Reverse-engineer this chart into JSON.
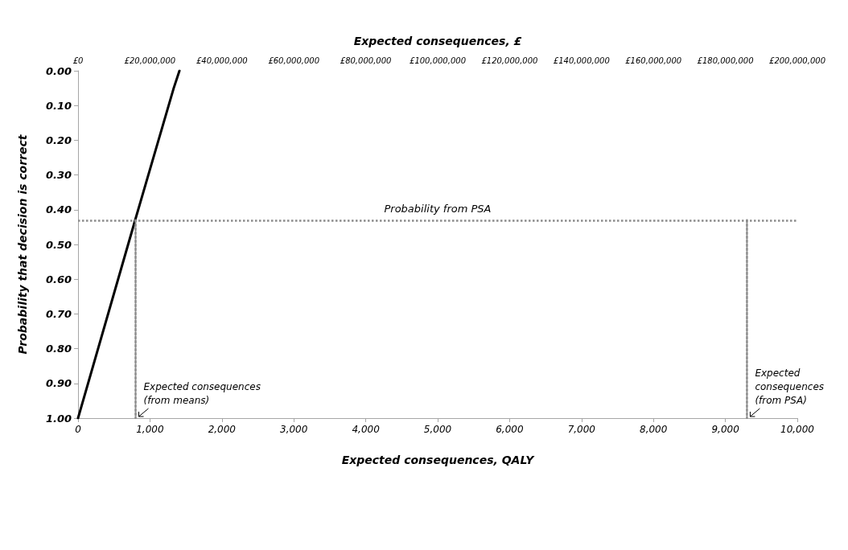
{
  "chart_data": {
    "type": "line",
    "xlabel": "Expected consequences, QALY",
    "x2label": "Expected consequences, £",
    "ylabel": "Probability that decision is correct",
    "xlim": [
      0,
      10000
    ],
    "xticks": [
      0,
      {
        "value": 1000,
        "label": "1,000"
      },
      {
        "value": 2000,
        "label": "2,000"
      },
      {
        "value": 3000,
        "label": "3,000"
      },
      {
        "value": 4000,
        "label": "4,000"
      },
      {
        "value": 5000,
        "label": "5,000"
      },
      {
        "value": 6000,
        "label": "6,000"
      },
      {
        "value": 7000,
        "label": "7,000"
      },
      {
        "value": 8000,
        "label": "8,000"
      },
      {
        "value": 9000,
        "label": "9,000"
      },
      {
        "value": 10000,
        "label": "10,000"
      }
    ],
    "x2lim": [
      0,
      200000000
    ],
    "x2ticks": [
      {
        "value": 0,
        "label": "£0"
      },
      {
        "value": 20000000,
        "label": "£20,000,000"
      },
      {
        "value": 40000000,
        "label": "£40,000,000"
      },
      {
        "value": 60000000,
        "label": "£60,000,000"
      },
      {
        "value": 80000000,
        "label": "£80,000,000"
      },
      {
        "value": 100000000,
        "label": "£100,000,000"
      },
      {
        "value": 120000000,
        "label": "£120,000,000"
      },
      {
        "value": 140000000,
        "label": "£140,000,000"
      },
      {
        "value": 160000000,
        "label": "£160,000,000"
      },
      {
        "value": 180000000,
        "label": "£180,000,000"
      },
      {
        "value": 200000000,
        "label": "£200,000,000"
      }
    ],
    "ylim": [
      1,
      0
    ],
    "yticks": [
      {
        "value": 0,
        "label": "0.00"
      },
      {
        "value": 0.1,
        "label": "0.10"
      },
      {
        "value": 0.2,
        "label": "0.20"
      },
      {
        "value": 0.3,
        "label": "0.30"
      },
      {
        "value": 0.4,
        "label": "0.40"
      },
      {
        "value": 0.5,
        "label": "0.50"
      },
      {
        "value": 0.6,
        "label": "0.60"
      },
      {
        "value": 0.7,
        "label": "0.70"
      },
      {
        "value": 0.8,
        "label": "0.80"
      },
      {
        "value": 0.9,
        "label": "0.90"
      },
      {
        "value": 1,
        "label": "1.00"
      }
    ],
    "series": [
      {
        "color": "#000000",
        "x": [
          0,
          794,
          1330,
          1410
        ],
        "values": [
          1,
          0.43,
          0.05,
          0
        ]
      },
      {
        "color": "#8c8c8c",
        "line_style": "dotted",
        "x": [
          800,
          800
        ],
        "values": [
          0.43,
          1
        ]
      },
      {
        "color": "#8c8c8c",
        "line_style": "dotted",
        "x": [
          9300,
          9300
        ],
        "values": [
          0.43,
          1
        ]
      }
    ],
    "ref_lines": [
      {
        "axis": "y",
        "value": 0.43,
        "label": "Probability from PSA",
        "color": "#8c8c8c",
        "line_style": "dotted"
      }
    ],
    "annotations": [
      {
        "text": "Expected consequences\n(from means)",
        "x": 800,
        "y": 1
      },
      {
        "text": "Expected\nconsequences\n(from PSA)",
        "x": 9300,
        "y": 1
      }
    ],
    "grid": false,
    "marker": "none",
    "line_style": "solid"
  }
}
